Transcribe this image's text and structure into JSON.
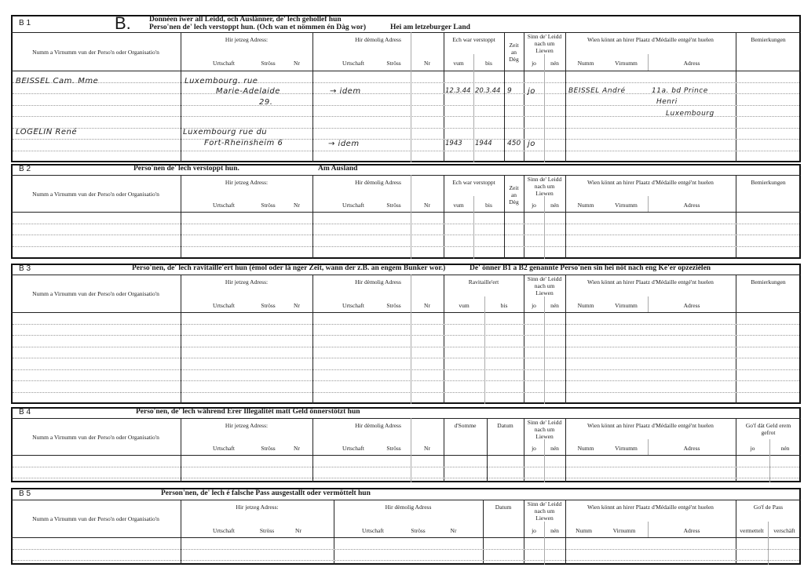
{
  "form_letter": "B.",
  "sections": [
    {
      "id": "B 1",
      "title_line1": "Donnéen iwer all Leidd, och Auslänner, de' lech gehollef hun",
      "title_line2": "Perso'nen de' lech verstoppt hun. (Och wan et nömmen én Dàg wor)",
      "title_line2_right": "Hei am letzeburger Land",
      "labels": {
        "name_col": "Numm a Virnumm vun der Perso'n oder Organisatio'n",
        "jetzeg": "Hir jetzeg Adress:",
        "demolig": "Hir dèmolig Adress",
        "urtschaft": "Urtschaft",
        "stross": "Ströss",
        "nr": "Nr",
        "period": "Ech war verstoppt",
        "vum": "vum",
        "bis": "bis",
        "zeit": "Zeit an Dèg",
        "sinn": "Sinn de' Leidd nach um Liewen",
        "jo": "jo",
        "nen": "nén",
        "medaille": "Wien könnt an hirer Plaatz d'Médaille entgé'nt huelen",
        "numm": "Numm",
        "virnumm": "Virnumm",
        "adress": "Adress",
        "last": "Bemierkungen"
      },
      "entries": [
        {
          "name": "BEISSEL Cam. Mme",
          "jetzeg": [
            "Luxembourg. rue",
            "Marie-Adelaide",
            "29."
          ],
          "demolig": "→ idem",
          "vum": "12.3.44",
          "bis": "20.3.44",
          "zeit": "9",
          "sinn": "jo",
          "med_numm": "BEISSEL André",
          "med_adress": [
            "11a. bd Prince",
            "Henri",
            "Luxembourg"
          ]
        },
        {
          "name": "LOGELIN René",
          "jetzeg": [
            "Luxembourg rue du",
            "Fort-Rheinsheim 6"
          ],
          "demolig": "→ idem",
          "vum": "1943",
          "bis": "1944",
          "zeit": "450",
          "sinn": "jo"
        }
      ]
    },
    {
      "id": "B 2",
      "title": "Perso'nen de' lech verstoppt hun.",
      "title_right": "Am Ausland",
      "labels": {
        "name_col": "Numm a Virnumm vun der Perso'n oder Organisatio'n",
        "jetzeg": "Hir jetzeg Adress:",
        "demolig": "Hir dèmolig Adress",
        "urtschaft": "Urtschaft",
        "stross": "Ströss",
        "nr": "Nr",
        "period": "Ech war verstoppt",
        "vum": "vum",
        "bis": "bis",
        "zeit": "Zeit an Dèg",
        "sinn": "Sinn de' Leidd nach um Liewen",
        "jo": "jo",
        "nen": "nén",
        "medaille": "Wien könnt an hirer Plaatz d'Médaille entgé'nt huelen",
        "numm": "Numm",
        "virnumm": "Virnumm",
        "adress": "Adress",
        "last": "Bemierkungen"
      }
    },
    {
      "id": "B 3",
      "title": "Perso'nen, de' lech ravitaille'ert hun (émol oder lä nger Zeit, wann der z.B. an engem Bunker wor.)",
      "title_right": "De' önner B1 a B2 genannte Perso'nen sin hei nöt nach eng Ke'er opzeziélen",
      "labels": {
        "name_col": "Numm a Virnumm vun der Perso'n oder Organisatio'n",
        "jetzeg": "Hir jetzeg Adress:",
        "demolig": "Hir dèmolig Adress",
        "urtschaft": "Urtschaft",
        "stross": "Ströss",
        "nr": "Nr",
        "period": "Ravitaille'ert",
        "vum": "vum",
        "bis": "bis",
        "sinn": "Sinn de' Leidd nach um Liewen",
        "jo": "jo",
        "nen": "nén",
        "medaille": "Wien könnt an hirer Plaatz d'Médaille entgé'nt huelen",
        "numm": "Numm",
        "virnumm": "Virnumm",
        "adress": "Adress",
        "last": "Bemierkungen"
      }
    },
    {
      "id": "B 4",
      "title": "Perso'nen, de' lech während Erer Illegalitét matt Geld önnerstötzt hun",
      "labels": {
        "name_col": "Numm a Virnumm vun der Perso'n oder Organisatio'n",
        "jetzeg": "Hir jetzeg Adress:",
        "demolig": "Hir dèmolig Adress",
        "urtschaft": "Urtschaft",
        "stross": "Ströss",
        "nr": "Nr",
        "somme": "d'Somme",
        "datum": "Datum",
        "sinn": "Sinn de' Leidd nach um Liewen",
        "jo": "jo",
        "nen": "nén",
        "medaille": "Wien könnt an hirer Plaatz d'Médaille entgé'nt huelen",
        "numm": "Numm",
        "virnumm": "Virnumm",
        "adress": "Adress",
        "last": "Go'f dät Geld erem gefrot",
        "last_a": "jo",
        "last_b": "nén"
      }
    },
    {
      "id": "B 5",
      "title": "Person'nen, de' lech é falsche Pass ausgestallt oder  vermöttelt hun",
      "labels": {
        "name_col": "Numm a Virnumm vun der Perso'n oder Organisatio'n",
        "jetzeg": "Hir jetzeg Adress:",
        "demolig": "Hir dèmolig Adress",
        "urtschaft": "Urtschaft",
        "stross": "Ströss",
        "nr": "Nr",
        "datum": "Datum",
        "sinn": "Sinn de' Leidd nach um Liewen",
        "jo": "jo",
        "nen": "nén",
        "medaille": "Wien könnt an hirer Plaatz d'Médaille entgé'nt huelen",
        "numm": "Numm",
        "virnumm": "Virnumm",
        "adress": "Adress",
        "last": "Go'f de Pass",
        "last_a": "vermettelt",
        "last_b": "verschäft"
      }
    }
  ]
}
